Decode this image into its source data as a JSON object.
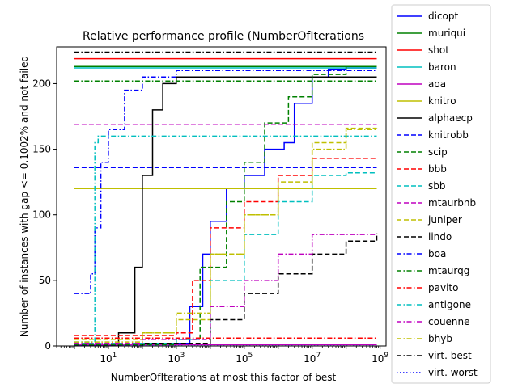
{
  "chart_data": {
    "type": "line",
    "title": "Relative performance profile (NumberOfIterations",
    "xlabel": "NumberOfIterations at most this factor of best",
    "ylabel": "Number of instances with gap <= 0.1002% and not failed",
    "xscale": "log",
    "xlim": [
      0.3,
      1500000000
    ],
    "ylim": [
      0,
      228
    ],
    "xticks": [
      {
        "value": 10,
        "base": "10",
        "exp": "1"
      },
      {
        "value": 1000,
        "base": "10",
        "exp": "3"
      },
      {
        "value": 100000,
        "base": "10",
        "exp": "5"
      },
      {
        "value": 10000000,
        "base": "10",
        "exp": "7"
      },
      {
        "value": 1000000000,
        "base": "10",
        "exp": "9"
      }
    ],
    "yticks": [
      0,
      50,
      100,
      150,
      200
    ],
    "grid": false,
    "legend_position": "outside-right",
    "series": [
      {
        "name": "dicopt",
        "color": "#0000ff",
        "dash": "solid",
        "points": [
          [
            1,
            1
          ],
          [
            1000,
            2
          ],
          [
            2500,
            30
          ],
          [
            6000,
            70
          ],
          [
            10000,
            95
          ],
          [
            30000,
            120
          ],
          [
            100000,
            130
          ],
          [
            400000,
            150
          ],
          [
            1500000,
            155
          ],
          [
            3000000,
            185
          ],
          [
            10000000,
            205
          ],
          [
            30000000,
            211
          ],
          [
            100000000,
            212
          ],
          [
            800000000,
            212
          ]
        ]
      },
      {
        "name": "muriqui",
        "color": "#008000",
        "dash": "solid",
        "points": [
          [
            1,
            213
          ],
          [
            800000000,
            213
          ]
        ]
      },
      {
        "name": "shot",
        "color": "#ff0000",
        "dash": "solid",
        "points": [
          [
            1,
            219
          ],
          [
            800000000,
            219
          ]
        ]
      },
      {
        "name": "baron",
        "color": "#00bfbf",
        "dash": "solid",
        "points": [
          [
            1,
            212
          ],
          [
            800000000,
            212
          ]
        ]
      },
      {
        "name": "aoa",
        "color": "#bf00bf",
        "dash": "solid",
        "points": [
          [
            1,
            1
          ],
          [
            800000000,
            1
          ]
        ]
      },
      {
        "name": "knitro",
        "color": "#bfbf00",
        "dash": "solid",
        "points": [
          [
            1,
            120
          ],
          [
            800000000,
            120
          ]
        ]
      },
      {
        "name": "alphaecp",
        "color": "#000000",
        "dash": "solid",
        "points": [
          [
            1,
            0
          ],
          [
            20,
            10
          ],
          [
            60,
            60
          ],
          [
            100,
            130
          ],
          [
            200,
            180
          ],
          [
            400,
            200
          ],
          [
            1000,
            205
          ],
          [
            800000000,
            205
          ]
        ]
      },
      {
        "name": "knitrobb",
        "color": "#0000ff",
        "dash": "dashed",
        "points": [
          [
            1,
            136
          ],
          [
            800000000,
            136
          ]
        ]
      },
      {
        "name": "scip",
        "color": "#008000",
        "dash": "dashed",
        "points": [
          [
            1,
            1
          ],
          [
            1000,
            5
          ],
          [
            5000,
            60
          ],
          [
            30000,
            110
          ],
          [
            100000,
            140
          ],
          [
            400000,
            170
          ],
          [
            2000000,
            190
          ],
          [
            10000000,
            207
          ],
          [
            100000000,
            213
          ],
          [
            800000000,
            213
          ]
        ]
      },
      {
        "name": "bbb",
        "color": "#ff0000",
        "dash": "dashed",
        "points": [
          [
            1,
            8
          ],
          [
            10,
            8
          ],
          [
            1000,
            10
          ],
          [
            3000,
            50
          ],
          [
            10000,
            90
          ],
          [
            100000,
            110
          ],
          [
            1000000,
            130
          ],
          [
            10000000,
            143
          ],
          [
            800000000,
            143
          ]
        ]
      },
      {
        "name": "sbb",
        "color": "#00bfbf",
        "dash": "dashed",
        "points": [
          [
            1,
            2
          ],
          [
            1000,
            5
          ],
          [
            10000,
            50
          ],
          [
            100000,
            85
          ],
          [
            1000000,
            110
          ],
          [
            10000000,
            130
          ],
          [
            100000000,
            132
          ],
          [
            800000000,
            132
          ]
        ]
      },
      {
        "name": "mtaurbnb",
        "color": "#bf00bf",
        "dash": "dashed",
        "points": [
          [
            1,
            169
          ],
          [
            800000000,
            169
          ]
        ]
      },
      {
        "name": "juniper",
        "color": "#bfbf00",
        "dash": "dashed",
        "points": [
          [
            1,
            5
          ],
          [
            100,
            10
          ],
          [
            1000,
            20
          ],
          [
            10000,
            70
          ],
          [
            100000,
            100
          ],
          [
            1000000,
            125
          ],
          [
            10000000,
            155
          ],
          [
            100000000,
            166
          ],
          [
            800000000,
            166
          ]
        ]
      },
      {
        "name": "lindo",
        "color": "#000000",
        "dash": "dashed",
        "points": [
          [
            1,
            0
          ],
          [
            100,
            2
          ],
          [
            10000,
            20
          ],
          [
            100000,
            40
          ],
          [
            1000000,
            55
          ],
          [
            10000000,
            70
          ],
          [
            100000000,
            80
          ],
          [
            800000000,
            86
          ]
        ]
      },
      {
        "name": "boa",
        "color": "#0000ff",
        "dash": "dashdot",
        "points": [
          [
            1,
            40
          ],
          [
            2,
            40
          ],
          [
            3,
            55
          ],
          [
            4,
            90
          ],
          [
            6,
            140
          ],
          [
            10,
            165
          ],
          [
            30,
            195
          ],
          [
            100,
            205
          ],
          [
            1000,
            210
          ],
          [
            800000000,
            210
          ]
        ]
      },
      {
        "name": "mtaurqg",
        "color": "#008000",
        "dash": "dashdot",
        "points": [
          [
            1,
            202
          ],
          [
            800000000,
            202
          ]
        ]
      },
      {
        "name": "pavito",
        "color": "#ff0000",
        "dash": "dashdot",
        "points": [
          [
            1,
            6
          ],
          [
            800000000,
            6
          ]
        ]
      },
      {
        "name": "antigone",
        "color": "#00bfbf",
        "dash": "dashdot",
        "points": [
          [
            1,
            3
          ],
          [
            3.5,
            3
          ],
          [
            4,
            155
          ],
          [
            5,
            160
          ],
          [
            800000000,
            160
          ]
        ]
      },
      {
        "name": "couenne",
        "color": "#bf00bf",
        "dash": "dashdot",
        "points": [
          [
            1,
            2
          ],
          [
            100,
            5
          ],
          [
            10000,
            30
          ],
          [
            100000,
            50
          ],
          [
            1000000,
            70
          ],
          [
            10000000,
            85
          ],
          [
            800000000,
            85
          ]
        ]
      },
      {
        "name": "bhyb",
        "color": "#bfbf00",
        "dash": "dashdot",
        "points": [
          [
            1,
            3
          ],
          [
            100,
            10
          ],
          [
            1000,
            25
          ],
          [
            10000,
            70
          ],
          [
            100000,
            100
          ],
          [
            1000000,
            120
          ],
          [
            10000000,
            150
          ],
          [
            100000000,
            165
          ],
          [
            800000000,
            166
          ]
        ]
      },
      {
        "name": "virt. best",
        "color": "#000000",
        "dash": "dashdot",
        "points": [
          [
            1,
            224
          ],
          [
            800000000,
            224
          ]
        ]
      },
      {
        "name": "virt. worst",
        "color": "#0000ff",
        "dash": "dotted",
        "points": [
          [
            1,
            0
          ],
          [
            800000000,
            0
          ]
        ]
      }
    ]
  }
}
